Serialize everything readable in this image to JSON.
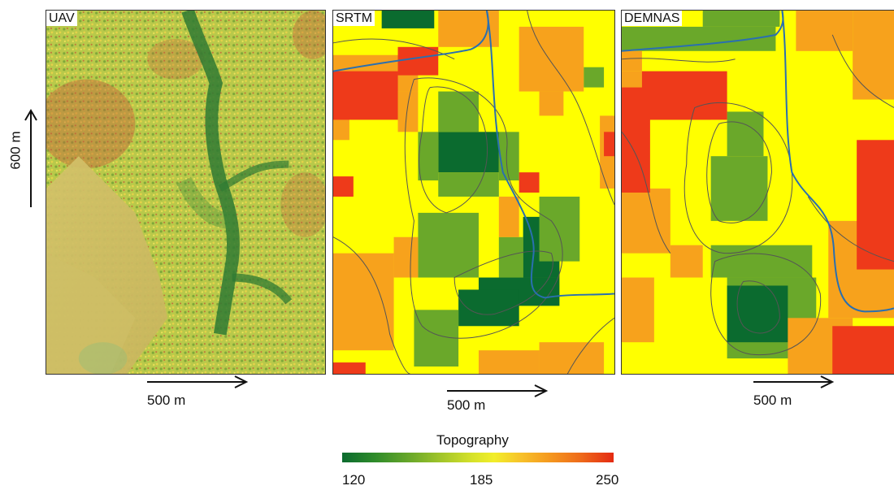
{
  "panels": {
    "uav": {
      "label": "UAV"
    },
    "srtm": {
      "label": "SRTM"
    },
    "demnas": {
      "label": "DEMNAS"
    }
  },
  "scale": {
    "horizontal_label": "500 m",
    "vertical_label": "600 m"
  },
  "legend": {
    "title": "Topography",
    "ticks": [
      "120",
      "185",
      "250"
    ],
    "colors": [
      "#0b6b2f",
      "#6aa82a",
      "#d6e22a",
      "#f2ee2a",
      "#f59a1f",
      "#e42a12"
    ]
  },
  "colors": {
    "dark_green": "#0b6b2f",
    "green": "#6aa82a",
    "yellow": "#ffff00",
    "orange": "#f7a21c",
    "red": "#ee3a1a",
    "river": "#2a6fb0",
    "contour": "#555555"
  }
}
